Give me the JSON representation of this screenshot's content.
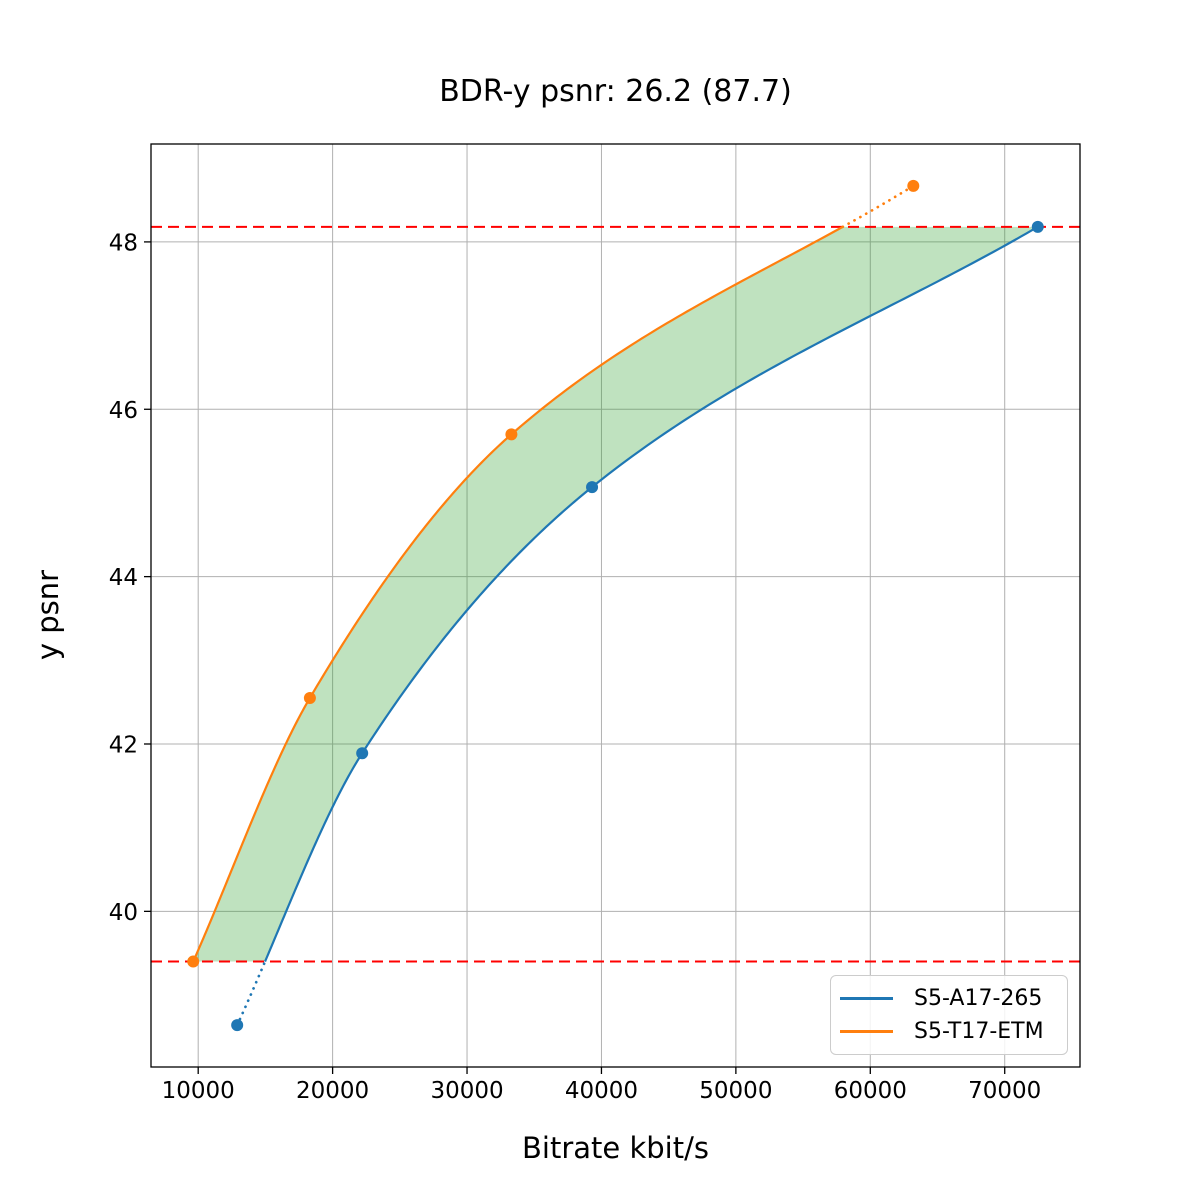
{
  "chart_data": {
    "type": "line",
    "title": "BDR-y psnr: 26.2 (87.7)",
    "xlabel": "Bitrate kbit/s",
    "ylabel": "y psnr",
    "xlim": [
      6489,
      75601
    ],
    "ylim": [
      38.14,
      49.17
    ],
    "x_ticks": [
      10000,
      20000,
      30000,
      40000,
      50000,
      60000,
      70000
    ],
    "y_ticks": [
      40,
      42,
      44,
      46,
      48
    ],
    "grid": true,
    "grid_color": "#b0b0b0",
    "legend_position": "lower right",
    "series": [
      {
        "name": "S5-A17-265",
        "color": "#1f77b4",
        "points": [
          [
            12900,
            38.64
          ],
          [
            22200,
            41.89
          ],
          [
            39300,
            45.07
          ],
          [
            72460,
            48.18
          ]
        ]
      },
      {
        "name": "S5-T17-ETM",
        "color": "#ff7f0e",
        "points": [
          [
            9630,
            39.4
          ],
          [
            18310,
            42.55
          ],
          [
            33300,
            45.7
          ],
          [
            63200,
            48.67
          ]
        ]
      }
    ],
    "hlines": [
      {
        "y": 48.18,
        "color": "#ff0000",
        "style": "dashed"
      },
      {
        "y": 39.4,
        "color": "#ff0000",
        "style": "dashed"
      }
    ],
    "band": {
      "lo": 39.4,
      "hi": 48.18,
      "color": "#2ca02c",
      "opacity": 0.3
    }
  }
}
